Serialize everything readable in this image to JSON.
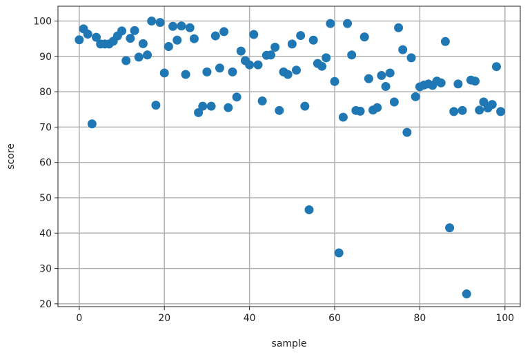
{
  "chart_data": {
    "type": "scatter",
    "title": "",
    "xlabel": "sample",
    "ylabel": "score",
    "xlim": [
      -5,
      103.6
    ],
    "ylim": [
      19.2,
      104.2
    ],
    "xticks": [
      0,
      20,
      40,
      60,
      80,
      100
    ],
    "yticks": [
      20,
      30,
      40,
      50,
      60,
      70,
      80,
      90,
      100
    ],
    "grid": true,
    "color": "#1f77b4",
    "x": [
      0,
      1,
      2,
      3,
      4,
      5,
      6,
      7,
      8,
      9,
      10,
      11,
      12,
      13,
      14,
      15,
      16,
      17,
      18,
      19,
      20,
      21,
      22,
      23,
      24,
      25,
      26,
      27,
      28,
      29,
      30,
      31,
      32,
      33,
      34,
      35,
      36,
      37,
      38,
      39,
      40,
      41,
      42,
      43,
      44,
      45,
      46,
      47,
      48,
      49,
      50,
      51,
      52,
      53,
      54,
      55,
      56,
      57,
      58,
      59,
      60,
      61,
      62,
      63,
      64,
      65,
      66,
      67,
      68,
      69,
      70,
      71,
      72,
      73,
      74,
      75,
      76,
      77,
      78,
      79,
      80,
      81,
      82,
      83,
      84,
      85,
      86,
      87,
      88,
      89,
      90,
      91,
      92,
      93,
      94,
      95,
      96,
      97,
      98,
      99
    ],
    "y": [
      94.7,
      97.8,
      96.3,
      70.9,
      95.4,
      93.5,
      93.5,
      93.5,
      94.3,
      95.8,
      97.2,
      88.8,
      95.1,
      97.3,
      89.8,
      93.6,
      90.4,
      100,
      76.2,
      99.6,
      85.3,
      92.8,
      98.5,
      94.6,
      98.6,
      84.9,
      98.1,
      95,
      74.1,
      75.9,
      85.6,
      75.9,
      95.8,
      86.7,
      97,
      75.5,
      85.6,
      78.5,
      91.5,
      88.8,
      87.6,
      96.2,
      87.6,
      77.4,
      90.3,
      90.4,
      92.6,
      74.7,
      85.6,
      84.9,
      93.5,
      86.1,
      95.9,
      75.9,
      46.6,
      94.6,
      88,
      87.2,
      89.6,
      99.3,
      82.9,
      34.4,
      72.8,
      99.3,
      90.4,
      74.7,
      74.5,
      95.5,
      83.7,
      74.8,
      75.5,
      84.6,
      81.5,
      85.3,
      77.1,
      98.1,
      91.9,
      68.5,
      89.6,
      78.6,
      81.4,
      81.9,
      82.2,
      81.8,
      83,
      82.5,
      94.2,
      41.5,
      74.4,
      82.2,
      74.7,
      22.8,
      83.3,
      83,
      74.8,
      77.1,
      75.4,
      76.4,
      87.1,
      74.4
    ]
  }
}
